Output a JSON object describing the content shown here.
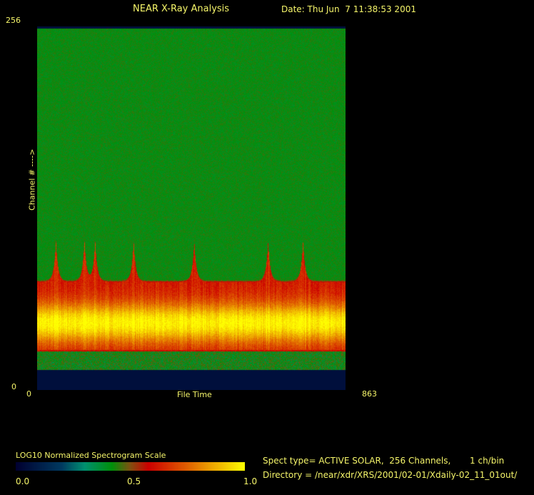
{
  "header": {
    "title": "NEAR X-Ray Analysis",
    "date": "Date: Thu Jun  7 11:38:53 2001"
  },
  "chart_data": {
    "type": "heatmap",
    "title": "NEAR X-Ray Analysis",
    "xlabel": "File Time",
    "ylabel": "Channel # ---->",
    "xlim": [
      0,
      863
    ],
    "ylim": [
      0,
      256
    ],
    "x_tick_labels": [
      "0",
      "863"
    ],
    "y_tick_labels": [
      "0",
      "256"
    ],
    "peak_channel": 47,
    "burst_file_times": [
      52,
      132,
      162,
      270,
      440,
      647,
      745
    ],
    "colorbar": {
      "title": "LOG10 Normalized Spectrogram Scale",
      "ticks": [
        "0.0",
        "0.5",
        "1.0"
      ],
      "range": [
        0,
        1
      ],
      "stops": [
        [
          0,
          "#000030"
        ],
        [
          0.2,
          "#003a60"
        ],
        [
          0.3,
          "#009070"
        ],
        [
          0.42,
          "#00900a"
        ],
        [
          0.5,
          "#805010"
        ],
        [
          0.58,
          "#cc0000"
        ],
        [
          0.75,
          "#e06000"
        ],
        [
          1,
          "#ffff00"
        ]
      ]
    }
  },
  "footer": {
    "spect_type": "Spect type= ACTIVE SOLAR,  256 Channels,       1 ch/bin",
    "directory": "Directory = /near/xdr/XRS/2001/02-01/Xdaily-02_11_01out/"
  }
}
